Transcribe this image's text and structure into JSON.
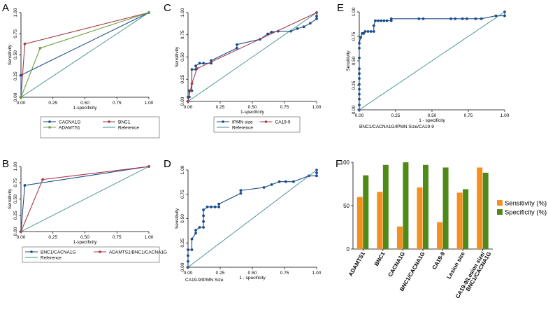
{
  "colors": {
    "navy": "#1a4b8c",
    "maroon": "#a83a44",
    "green": "#6a9e3c",
    "ref": "#3e8b8e",
    "sens": "#f5901f",
    "spec": "#4f8a18"
  },
  "chart_data": [
    {
      "panel": "A",
      "type": "line",
      "title": "",
      "xlabel": "1-specificity",
      "ylabel": "Sensitivity",
      "xlim": [
        0,
        1
      ],
      "ylim": [
        0,
        1
      ],
      "ticks": [
        "0.00",
        "0.25",
        "0.50",
        "0.75",
        "1.00"
      ],
      "series": [
        {
          "name": "CACNA1G",
          "color": "navy",
          "x": [
            0,
            0,
            1
          ],
          "y": [
            0,
            0.26,
            1
          ]
        },
        {
          "name": "BNC1",
          "color": "maroon",
          "x": [
            0,
            0.03,
            1
          ],
          "y": [
            0,
            0.63,
            1
          ]
        },
        {
          "name": "ADAMTS1",
          "color": "green",
          "x": [
            0,
            0.15,
            1
          ],
          "y": [
            0,
            0.58,
            1
          ]
        },
        {
          "name": "Reference",
          "color": "ref",
          "x": [
            0,
            1
          ],
          "y": [
            0,
            1
          ],
          "ref": true
        }
      ]
    },
    {
      "panel": "B",
      "type": "line",
      "title": "",
      "xlabel": "1-specificity",
      "ylabel": "Sensitivity",
      "xlim": [
        0,
        1
      ],
      "ylim": [
        0,
        1
      ],
      "ticks": [
        "0.00",
        "0.25",
        "0.50",
        "0.75",
        "1.00"
      ],
      "series": [
        {
          "name": "BNC1/CACNA1G",
          "color": "navy",
          "x": [
            0,
            0.03,
            1
          ],
          "y": [
            0,
            0.71,
            1
          ]
        },
        {
          "name": "ADAMTS1/BNC1/CACNA1G",
          "color": "maroon",
          "x": [
            0,
            0.17,
            1
          ],
          "y": [
            0,
            0.8,
            1
          ]
        },
        {
          "name": "Reference",
          "color": "ref",
          "x": [
            0,
            1
          ],
          "y": [
            0,
            1
          ],
          "ref": true
        }
      ]
    },
    {
      "panel": "C",
      "type": "line",
      "title": "",
      "xlabel": "1-specificity",
      "ylabel": "Sensitivity",
      "xlim": [
        0,
        1
      ],
      "ylim": [
        0,
        1
      ],
      "ticks": [
        "0.00",
        "0.25",
        "0.50",
        "0.75",
        "1.00"
      ],
      "series": [
        {
          "name": "IPMN size",
          "color": "navy",
          "x": [
            0,
            0,
            0.01,
            0.01,
            0.03,
            0.03,
            0.06,
            0.06,
            0.09,
            0.12,
            0.18,
            0.18,
            0.38,
            0.38,
            0.56,
            0.62,
            0.65,
            0.7,
            0.8,
            0.85,
            0.9,
            0.95,
            1,
            1,
            1
          ],
          "y": [
            0,
            0.05,
            0.05,
            0.12,
            0.12,
            0.36,
            0.36,
            0.4,
            0.43,
            0.43,
            0.43,
            0.46,
            0.6,
            0.64,
            0.7,
            0.76,
            0.78,
            0.79,
            0.79,
            0.82,
            0.84,
            0.88,
            0.93,
            0.96,
            1
          ]
        },
        {
          "name": "CA19-9",
          "color": "maroon",
          "x": [
            0,
            0.03,
            0.07,
            1
          ],
          "y": [
            0,
            0.2,
            0.37,
            1
          ]
        },
        {
          "name": "Reference",
          "color": "ref",
          "x": [
            0,
            1
          ],
          "y": [
            0,
            1
          ],
          "ref": true
        }
      ]
    },
    {
      "panel": "D",
      "type": "line",
      "title": "",
      "xlabel": "1 - specificity",
      "ylabel": "Sensitivity",
      "note": "CA19-9/IPMN Size",
      "xlim": [
        0,
        1
      ],
      "ylim": [
        0,
        1
      ],
      "ticks": [
        "0.00",
        "0.25",
        "0.50",
        "0.75",
        "1.00"
      ],
      "series": [
        {
          "name": "CA19-9/IPMN Size",
          "color": "navy",
          "x": [
            0,
            0,
            0,
            0,
            0.03,
            0.03,
            0.06,
            0.06,
            0.09,
            0.12,
            0.12,
            0.12,
            0.12,
            0.15,
            0.18,
            0.21,
            0.24,
            0.24,
            0.41,
            0.41,
            0.59,
            0.65,
            0.71,
            0.76,
            0.82,
            0.94,
            1,
            1,
            1
          ],
          "y": [
            0,
            0.06,
            0.12,
            0.18,
            0.18,
            0.29,
            0.35,
            0.38,
            0.41,
            0.41,
            0.47,
            0.53,
            0.59,
            0.62,
            0.62,
            0.62,
            0.62,
            0.65,
            0.76,
            0.79,
            0.82,
            0.85,
            0.88,
            0.88,
            0.88,
            0.94,
            0.94,
            0.97,
            1
          ]
        },
        {
          "name": "Reference",
          "color": "ref",
          "x": [
            0,
            1
          ],
          "y": [
            0,
            1
          ],
          "ref": true,
          "hideLegend": true
        }
      ]
    },
    {
      "panel": "E",
      "type": "line",
      "title": "",
      "xlabel": "1 - specificity",
      "ylabel": "Sensitivity",
      "note": "BNC1/CACNA1G/IPMN Size/CA19-9",
      "xlim": [
        0,
        1
      ],
      "ylim": [
        0,
        1
      ],
      "ticks": [
        "0.00",
        "0.25",
        "0.50",
        "0.75",
        "1.00"
      ],
      "series": [
        {
          "name": "BNC1/CACNA1G/IPMN Size/CA19-9",
          "color": "navy",
          "x": [
            0,
            0,
            0,
            0,
            0,
            0,
            0,
            0,
            0,
            0,
            0,
            0,
            0.01,
            0.02,
            0.03,
            0.04,
            0.06,
            0.08,
            0.1,
            0.1,
            0.11,
            0.13,
            0.15,
            0.17,
            0.19,
            0.22,
            0.22,
            0.41,
            0.44,
            0.63,
            0.66,
            0.71,
            0.74,
            0.8,
            0.84,
            0.94,
            1,
            1
          ],
          "y": [
            0,
            0.05,
            0.11,
            0.16,
            0.21,
            0.26,
            0.32,
            0.37,
            0.42,
            0.53,
            0.63,
            0.68,
            0.74,
            0.78,
            0.78,
            0.8,
            0.8,
            0.8,
            0.8,
            0.86,
            0.91,
            0.91,
            0.91,
            0.91,
            0.91,
            0.91,
            0.93,
            0.93,
            0.93,
            0.93,
            0.93,
            0.93,
            0.93,
            0.93,
            0.93,
            0.96,
            0.96,
            1
          ]
        },
        {
          "name": "Reference",
          "color": "ref",
          "x": [
            0,
            1
          ],
          "y": [
            0,
            1
          ],
          "ref": true,
          "hideLegend": true
        }
      ]
    },
    {
      "panel": "F",
      "type": "bar",
      "title": "",
      "xlabel": "",
      "ylabel": "",
      "ylim": [
        0,
        100
      ],
      "yticks": [
        0,
        50,
        100
      ],
      "legend": "right",
      "categories": [
        "ADAMTS1",
        "BNC1",
        "CACNA1G",
        "BNC1/CACNA1G",
        "CA19-9",
        "Lesion size",
        "CA19-9/Lesion size/\nBNC1/CACNA1G"
      ],
      "series": [
        {
          "name": "Sensitivity (%)",
          "color": "sens",
          "values": [
            60,
            66,
            26,
            71,
            31,
            65,
            94
          ]
        },
        {
          "name": "Specificity (%)",
          "color": "spec",
          "values": [
            85,
            97,
            100,
            97,
            94,
            69,
            88
          ]
        }
      ]
    }
  ]
}
